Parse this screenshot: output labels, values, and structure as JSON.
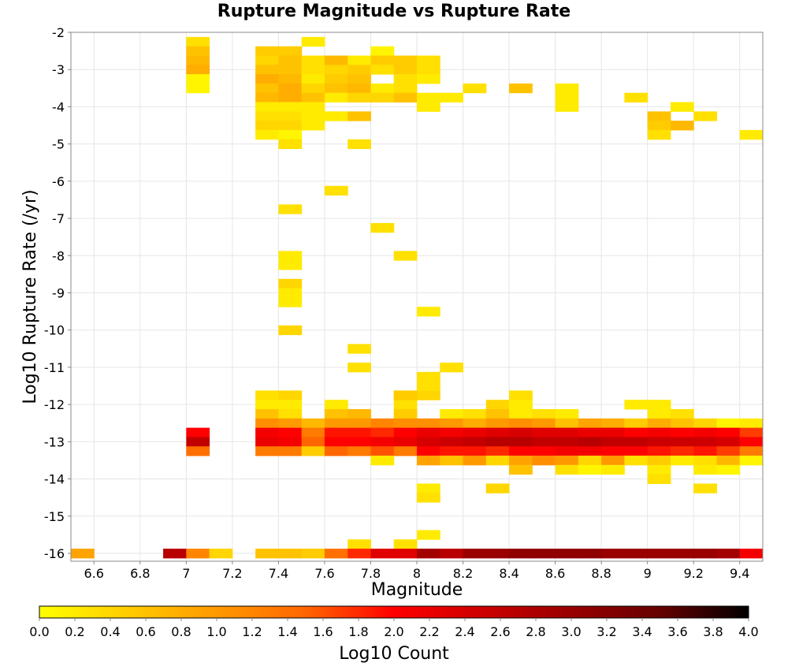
{
  "chart_data": {
    "type": "heatmap",
    "title": "Rupture Magnitude vs Rupture Rate",
    "xlabel": "Magnitude",
    "ylabel": "Log10 Rupture Rate (/yr)",
    "colorbar_label": "Log10 Count",
    "xlim": [
      6.5,
      9.5
    ],
    "ylim": [
      -16.0,
      -2.0
    ],
    "x_bin_width": 0.1,
    "y_bin_width": 0.25,
    "x_ticks": [
      "6.6",
      "6.8",
      "7",
      "7.2",
      "7.4",
      "7.6",
      "7.8",
      "8",
      "8.2",
      "8.4",
      "8.6",
      "8.8",
      "9",
      "9.2",
      "9.4"
    ],
    "y_ticks": [
      "-2",
      "-3",
      "-4",
      "-5",
      "-6",
      "-7",
      "-8",
      "-9",
      "-10",
      "-11",
      "-12",
      "-13",
      "-14",
      "-15",
      "-16"
    ],
    "colorbar_ticks": [
      "0.0",
      "0.2",
      "0.4",
      "0.6",
      "0.8",
      "1.0",
      "1.2",
      "1.4",
      "1.6",
      "1.8",
      "2.0",
      "2.2",
      "2.4",
      "2.6",
      "2.8",
      "3.0",
      "3.2",
      "3.4",
      "3.6",
      "3.8",
      "4.0"
    ],
    "color_range": [
      0.0,
      4.0
    ],
    "colormap": [
      "#ffff00",
      "#ffcc00",
      "#ff9900",
      "#ff6600",
      "#ff0000",
      "#cc0000",
      "#990000",
      "#660000",
      "#000000"
    ],
    "grid": true,
    "bins": [
      [
        7.0,
        -2.25,
        0.3
      ],
      [
        7.0,
        -2.5,
        0.6
      ],
      [
        7.0,
        -2.75,
        0.7
      ],
      [
        7.0,
        -3.0,
        0.8
      ],
      [
        7.0,
        -3.25,
        0.1
      ],
      [
        7.0,
        -3.5,
        0.1
      ],
      [
        7.3,
        -2.5,
        0.5
      ],
      [
        7.3,
        -2.75,
        0.4
      ],
      [
        7.3,
        -3.0,
        0.6
      ],
      [
        7.3,
        -3.25,
        0.8
      ],
      [
        7.3,
        -3.5,
        0.6
      ],
      [
        7.3,
        -3.75,
        0.7
      ],
      [
        7.3,
        -4.0,
        0.2
      ],
      [
        7.3,
        -4.25,
        0.3
      ],
      [
        7.3,
        -4.5,
        0.4
      ],
      [
        7.3,
        -4.75,
        0.2
      ],
      [
        7.4,
        -2.5,
        0.5
      ],
      [
        7.4,
        -2.75,
        0.6
      ],
      [
        7.4,
        -3.0,
        0.6
      ],
      [
        7.4,
        -3.25,
        0.7
      ],
      [
        7.4,
        -3.5,
        0.8
      ],
      [
        7.4,
        -3.75,
        0.8
      ],
      [
        7.4,
        -4.0,
        0.2
      ],
      [
        7.4,
        -4.25,
        0.3
      ],
      [
        7.4,
        -4.5,
        0.4
      ],
      [
        7.4,
        -4.75,
        0.1
      ],
      [
        7.4,
        -5.0,
        0.3
      ],
      [
        7.5,
        -2.25,
        0.2
      ],
      [
        7.5,
        -2.75,
        0.3
      ],
      [
        7.5,
        -3.0,
        0.3
      ],
      [
        7.5,
        -3.25,
        0.2
      ],
      [
        7.5,
        -3.5,
        0.4
      ],
      [
        7.5,
        -3.75,
        0.6
      ],
      [
        7.5,
        -4.0,
        0.2
      ],
      [
        7.5,
        -4.25,
        0.2
      ],
      [
        7.5,
        -4.5,
        0.2
      ],
      [
        7.6,
        -2.75,
        0.7
      ],
      [
        7.6,
        -3.0,
        0.4
      ],
      [
        7.6,
        -3.25,
        0.5
      ],
      [
        7.6,
        -3.5,
        0.6
      ],
      [
        7.6,
        -3.75,
        0.2
      ],
      [
        7.6,
        -4.25,
        0.2
      ],
      [
        7.7,
        -2.75,
        0.2
      ],
      [
        7.7,
        -3.0,
        0.5
      ],
      [
        7.7,
        -3.25,
        0.6
      ],
      [
        7.7,
        -3.5,
        0.7
      ],
      [
        7.7,
        -3.75,
        0.4
      ],
      [
        7.7,
        -4.25,
        0.6
      ],
      [
        7.8,
        -2.5,
        0.1
      ],
      [
        7.8,
        -2.75,
        0.5
      ],
      [
        7.8,
        -3.0,
        0.3
      ],
      [
        7.8,
        -3.5,
        0.2
      ],
      [
        7.8,
        -3.75,
        0.4
      ],
      [
        7.9,
        -2.75,
        0.5
      ],
      [
        7.9,
        -3.0,
        0.5
      ],
      [
        7.9,
        -3.25,
        0.3
      ],
      [
        7.9,
        -3.5,
        0.3
      ],
      [
        7.9,
        -3.75,
        0.6
      ],
      [
        8.0,
        -2.75,
        0.3
      ],
      [
        8.0,
        -3.0,
        0.3
      ],
      [
        8.0,
        -3.25,
        0.2
      ],
      [
        8.0,
        -3.75,
        0.2
      ],
      [
        8.0,
        -4.0,
        0.2
      ],
      [
        8.1,
        -3.75,
        0.2
      ],
      [
        8.2,
        -3.5,
        0.3
      ],
      [
        8.4,
        -3.5,
        0.6
      ],
      [
        8.6,
        -3.5,
        0.2
      ],
      [
        8.6,
        -3.75,
        0.2
      ],
      [
        8.6,
        -4.0,
        0.2
      ],
      [
        8.9,
        -3.75,
        0.3
      ],
      [
        9.1,
        -4.0,
        0.2
      ],
      [
        9.0,
        -4.25,
        0.6
      ],
      [
        9.0,
        -4.5,
        0.5
      ],
      [
        9.0,
        -4.75,
        0.3
      ],
      [
        9.1,
        -4.5,
        0.7
      ],
      [
        9.2,
        -4.25,
        0.3
      ],
      [
        9.4,
        -4.75,
        0.2
      ],
      [
        7.7,
        -5.0,
        0.3
      ],
      [
        7.6,
        -6.25,
        0.3
      ],
      [
        7.4,
        -6.75,
        0.3
      ],
      [
        7.8,
        -7.25,
        0.3
      ],
      [
        7.9,
        -8.0,
        0.3
      ],
      [
        7.4,
        -8.0,
        0.2
      ],
      [
        7.4,
        -8.25,
        0.2
      ],
      [
        7.4,
        -8.75,
        0.4
      ],
      [
        7.4,
        -9.0,
        0.2
      ],
      [
        7.4,
        -9.25,
        0.2
      ],
      [
        7.4,
        -10.0,
        0.4
      ],
      [
        8.0,
        -9.5,
        0.2
      ],
      [
        7.7,
        -10.5,
        0.3
      ],
      [
        7.7,
        -11.0,
        0.3
      ],
      [
        8.0,
        -11.25,
        0.3
      ],
      [
        8.1,
        -11.0,
        0.3
      ],
      [
        7.3,
        -11.75,
        0.3
      ],
      [
        7.4,
        -11.75,
        0.4
      ],
      [
        7.9,
        -11.75,
        0.5
      ],
      [
        8.0,
        -11.75,
        0.4
      ],
      [
        8.4,
        -11.75,
        0.3
      ],
      [
        7.3,
        -12.0,
        0.2
      ],
      [
        7.4,
        -12.0,
        0.2
      ],
      [
        7.9,
        -12.0,
        0.3
      ],
      [
        7.9,
        -11.75,
        0.5
      ],
      [
        8.0,
        -11.5,
        0.3
      ],
      [
        8.3,
        -12.0,
        0.4
      ],
      [
        8.4,
        -12.0,
        0.2
      ],
      [
        8.9,
        -12.0,
        0.2
      ],
      [
        9.0,
        -12.0,
        0.2
      ],
      [
        7.3,
        -12.25,
        0.6
      ],
      [
        7.4,
        -12.25,
        0.3
      ],
      [
        7.6,
        -12.0,
        0.2
      ],
      [
        7.6,
        -12.25,
        0.6
      ],
      [
        7.7,
        -12.25,
        0.7
      ],
      [
        7.9,
        -12.25,
        0.5
      ],
      [
        8.1,
        -12.25,
        0.2
      ],
      [
        8.2,
        -12.25,
        0.3
      ],
      [
        8.3,
        -12.25,
        0.6
      ],
      [
        8.4,
        -12.25,
        0.2
      ],
      [
        8.5,
        -12.25,
        0.3
      ],
      [
        8.6,
        -12.25,
        0.2
      ],
      [
        9.0,
        -12.25,
        0.2
      ],
      [
        9.1,
        -12.25,
        0.3
      ],
      [
        7.3,
        -12.5,
        1.1
      ],
      [
        7.4,
        -12.5,
        1.0
      ],
      [
        7.5,
        -12.5,
        0.7
      ],
      [
        7.6,
        -12.5,
        1.0
      ],
      [
        7.7,
        -12.5,
        1.0
      ],
      [
        7.8,
        -12.5,
        1.2
      ],
      [
        7.9,
        -12.5,
        1.1
      ],
      [
        8.0,
        -12.5,
        1.1
      ],
      [
        8.1,
        -12.5,
        1.0
      ],
      [
        8.2,
        -12.5,
        0.8
      ],
      [
        8.3,
        -12.5,
        1.0
      ],
      [
        8.4,
        -12.5,
        1.1
      ],
      [
        8.5,
        -12.5,
        1.0
      ],
      [
        8.6,
        -12.5,
        0.6
      ],
      [
        8.7,
        -12.5,
        0.9
      ],
      [
        8.8,
        -12.5,
        0.8
      ],
      [
        8.9,
        -12.5,
        0.5
      ],
      [
        9.0,
        -12.5,
        0.8
      ],
      [
        9.1,
        -12.5,
        0.6
      ],
      [
        9.2,
        -12.5,
        0.4
      ],
      [
        9.3,
        -12.5,
        0.1
      ],
      [
        9.4,
        -12.5,
        0.2
      ],
      [
        7.0,
        -12.75,
        2.0
      ],
      [
        7.3,
        -12.75,
        2.1
      ],
      [
        7.4,
        -12.75,
        2.0
      ],
      [
        7.5,
        -12.75,
        1.3
      ],
      [
        7.6,
        -12.75,
        1.9
      ],
      [
        7.7,
        -12.75,
        1.9
      ],
      [
        7.8,
        -12.75,
        1.8
      ],
      [
        7.9,
        -12.75,
        2.0
      ],
      [
        8.0,
        -12.75,
        2.2
      ],
      [
        8.1,
        -12.75,
        2.1
      ],
      [
        8.2,
        -12.75,
        2.2
      ],
      [
        8.3,
        -12.75,
        2.3
      ],
      [
        8.4,
        -12.75,
        2.4
      ],
      [
        8.5,
        -12.75,
        2.3
      ],
      [
        8.6,
        -12.75,
        2.3
      ],
      [
        8.7,
        -12.75,
        2.2
      ],
      [
        8.8,
        -12.75,
        2.2
      ],
      [
        8.9,
        -12.75,
        2.0
      ],
      [
        9.0,
        -12.75,
        2.1
      ],
      [
        9.1,
        -12.75,
        2.0
      ],
      [
        9.2,
        -12.75,
        2.1
      ],
      [
        9.3,
        -12.75,
        2.0
      ],
      [
        9.4,
        -12.75,
        1.7
      ],
      [
        7.0,
        -13.0,
        2.6
      ],
      [
        7.3,
        -13.0,
        2.2
      ],
      [
        7.4,
        -13.0,
        2.1
      ],
      [
        7.5,
        -13.0,
        1.5
      ],
      [
        7.6,
        -13.0,
        2.0
      ],
      [
        7.7,
        -13.0,
        2.0
      ],
      [
        7.8,
        -13.0,
        2.1
      ],
      [
        7.9,
        -13.0,
        2.2
      ],
      [
        8.0,
        -13.0,
        2.4
      ],
      [
        8.1,
        -13.0,
        2.5
      ],
      [
        8.2,
        -13.0,
        2.6
      ],
      [
        8.3,
        -13.0,
        2.7
      ],
      [
        8.4,
        -13.0,
        2.7
      ],
      [
        8.5,
        -13.0,
        2.6
      ],
      [
        8.6,
        -13.0,
        2.6
      ],
      [
        8.7,
        -13.0,
        2.7
      ],
      [
        8.8,
        -13.0,
        2.6
      ],
      [
        8.9,
        -13.0,
        2.6
      ],
      [
        9.0,
        -13.0,
        2.5
      ],
      [
        9.1,
        -13.0,
        2.5
      ],
      [
        9.2,
        -13.0,
        2.5
      ],
      [
        9.3,
        -13.0,
        2.4
      ],
      [
        9.4,
        -13.0,
        2.0
      ],
      [
        7.0,
        -13.25,
        1.4
      ],
      [
        7.3,
        -13.25,
        1.3
      ],
      [
        7.4,
        -13.25,
        1.3
      ],
      [
        7.5,
        -13.25,
        0.5
      ],
      [
        7.6,
        -13.25,
        1.5
      ],
      [
        7.7,
        -13.25,
        1.3
      ],
      [
        7.8,
        -13.25,
        1.6
      ],
      [
        7.9,
        -13.25,
        1.3
      ],
      [
        8.0,
        -13.25,
        2.0
      ],
      [
        8.1,
        -13.25,
        1.9
      ],
      [
        8.2,
        -13.25,
        1.9
      ],
      [
        8.3,
        -13.25,
        1.8
      ],
      [
        8.4,
        -13.25,
        2.0
      ],
      [
        8.5,
        -13.25,
        2.0
      ],
      [
        8.6,
        -13.25,
        2.1
      ],
      [
        8.7,
        -13.25,
        2.1
      ],
      [
        8.8,
        -13.25,
        2.0
      ],
      [
        8.9,
        -13.25,
        2.0
      ],
      [
        9.0,
        -13.25,
        1.9
      ],
      [
        9.1,
        -13.25,
        1.8
      ],
      [
        9.2,
        -13.25,
        1.9
      ],
      [
        9.3,
        -13.25,
        1.7
      ],
      [
        9.4,
        -13.25,
        1.3
      ],
      [
        7.8,
        -13.5,
        0.2
      ],
      [
        8.0,
        -13.5,
        0.9
      ],
      [
        8.1,
        -13.5,
        0.6
      ],
      [
        8.2,
        -13.5,
        1.0
      ],
      [
        8.3,
        -13.5,
        0.4
      ],
      [
        8.4,
        -13.5,
        0.9
      ],
      [
        8.5,
        -13.5,
        1.1
      ],
      [
        8.6,
        -13.5,
        1.0
      ],
      [
        8.7,
        -13.5,
        0.4
      ],
      [
        8.8,
        -13.5,
        1.0
      ],
      [
        8.9,
        -13.5,
        0.3
      ],
      [
        9.0,
        -13.5,
        0.5
      ],
      [
        9.1,
        -13.5,
        0.2
      ],
      [
        9.2,
        -13.5,
        0.3
      ],
      [
        9.3,
        -13.5,
        0.7
      ],
      [
        9.4,
        -13.5,
        0.1
      ],
      [
        8.4,
        -13.75,
        0.6
      ],
      [
        8.6,
        -13.75,
        0.3
      ],
      [
        8.7,
        -13.75,
        0.1
      ],
      [
        8.8,
        -13.75,
        0.2
      ],
      [
        9.0,
        -13.75,
        0.2
      ],
      [
        9.2,
        -13.75,
        0.2
      ],
      [
        9.3,
        -13.75,
        0.1
      ],
      [
        8.0,
        -14.25,
        0.2
      ],
      [
        8.0,
        -14.5,
        0.3
      ],
      [
        8.3,
        -14.25,
        0.4
      ],
      [
        9.0,
        -14.0,
        0.3
      ],
      [
        9.2,
        -14.25,
        0.3
      ],
      [
        7.7,
        -15.75,
        0.3
      ],
      [
        7.9,
        -15.75,
        0.3
      ],
      [
        8.0,
        -15.5,
        0.2
      ],
      [
        6.5,
        -16.0,
        0.9
      ],
      [
        6.9,
        -16.0,
        2.7
      ],
      [
        7.0,
        -16.0,
        1.2
      ],
      [
        7.1,
        -16.0,
        0.4
      ],
      [
        7.3,
        -16.0,
        0.6
      ],
      [
        7.4,
        -16.0,
        0.6
      ],
      [
        7.5,
        -16.0,
        0.5
      ],
      [
        7.6,
        -16.0,
        1.4
      ],
      [
        7.7,
        -16.0,
        1.8
      ],
      [
        7.8,
        -16.0,
        2.3
      ],
      [
        7.9,
        -16.0,
        2.3
      ],
      [
        8.0,
        -16.0,
        2.9
      ],
      [
        8.1,
        -16.0,
        2.7
      ],
      [
        8.2,
        -16.0,
        3.0
      ],
      [
        8.3,
        -16.0,
        3.0
      ],
      [
        8.4,
        -16.0,
        3.1
      ],
      [
        8.5,
        -16.0,
        3.1
      ],
      [
        8.6,
        -16.0,
        3.1
      ],
      [
        8.7,
        -16.0,
        3.1
      ],
      [
        8.8,
        -16.0,
        3.0
      ],
      [
        8.9,
        -16.0,
        3.0
      ],
      [
        9.0,
        -16.0,
        3.0
      ],
      [
        9.1,
        -16.0,
        3.0
      ],
      [
        9.2,
        -16.0,
        3.0
      ],
      [
        9.3,
        -16.0,
        2.9
      ],
      [
        9.4,
        -16.0,
        2.1
      ]
    ]
  }
}
